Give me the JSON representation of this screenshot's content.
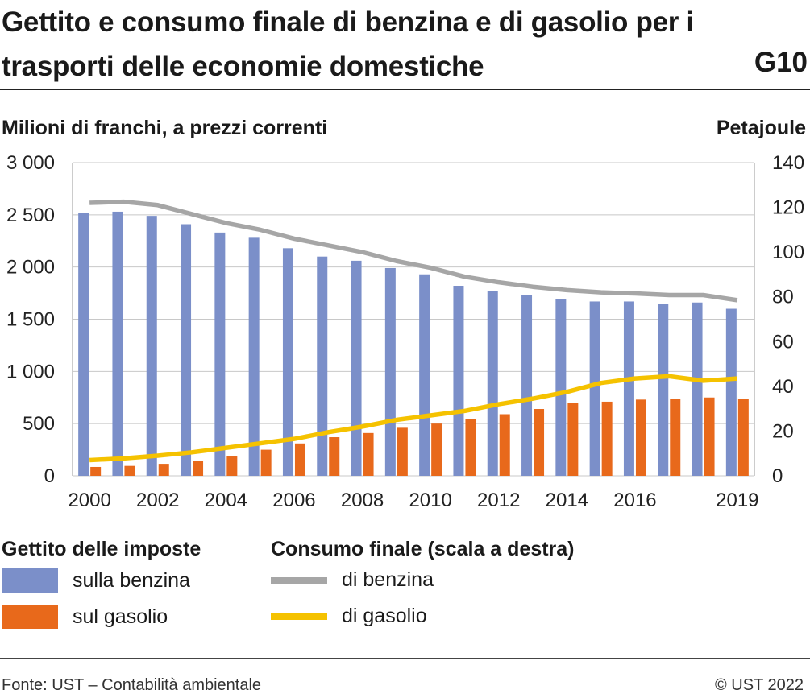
{
  "header": {
    "title": "Gettito e consumo finale di benzina e di gasolio per i trasporti delle economie domestiche",
    "code": "G10"
  },
  "chart_data": {
    "type": "bar",
    "ylabel": "Milioni di franchi, a prezzi correnti",
    "y2label": "Petajoule",
    "ylim": [
      0,
      3000
    ],
    "y2lim": [
      0,
      140
    ],
    "yticks": [
      0,
      500,
      1000,
      1500,
      2000,
      2500,
      3000
    ],
    "yticks_labels": [
      "0",
      "500",
      "1 000",
      "1 500",
      "2 000",
      "2 500",
      "3 000"
    ],
    "y2ticks": [
      0,
      20,
      40,
      60,
      80,
      100,
      120,
      140
    ],
    "x": [
      2000,
      2001,
      2002,
      2003,
      2004,
      2005,
      2006,
      2007,
      2008,
      2009,
      2010,
      2011,
      2012,
      2013,
      2014,
      2015,
      2016,
      2017,
      2018,
      2019
    ],
    "xtick_labels": [
      "2000",
      "",
      "2002",
      "",
      "2004",
      "",
      "2006",
      "",
      "2008",
      "",
      "2010",
      "",
      "2012",
      "",
      "2014",
      "",
      "2016",
      "",
      "",
      "2019"
    ],
    "grid": true,
    "legend_position": "bottom",
    "legend_groups": [
      "Gettito delle imposte",
      "Consumo finale (scala a destra)"
    ],
    "series": [
      {
        "name": "sulla benzina",
        "kind": "bar",
        "axis": "left",
        "color": "#7b8fc9",
        "values": [
          2520,
          2530,
          2490,
          2410,
          2330,
          2280,
          2180,
          2100,
          2060,
          1990,
          1930,
          1820,
          1770,
          1730,
          1690,
          1670,
          1670,
          1650,
          1660,
          1600
        ]
      },
      {
        "name": "sul gasolio",
        "kind": "bar",
        "axis": "left",
        "color": "#e8691b",
        "values": [
          85,
          95,
          115,
          145,
          185,
          250,
          310,
          370,
          410,
          460,
          500,
          540,
          590,
          640,
          700,
          710,
          730,
          740,
          750,
          740
        ]
      },
      {
        "name": "di benzina",
        "kind": "line",
        "axis": "right",
        "color": "#a6a6a6",
        "values": [
          122,
          122.5,
          121,
          117,
          113,
          110,
          106,
          103,
          100,
          96,
          93,
          89,
          86.5,
          84.5,
          83,
          82,
          81.5,
          80.8,
          80.8,
          78.5
        ]
      },
      {
        "name": "di gasolio",
        "kind": "line",
        "axis": "right",
        "color": "#f5c200",
        "values": [
          7,
          7.8,
          9,
          10.5,
          12.5,
          14.5,
          16.5,
          19.5,
          22,
          25,
          27,
          29,
          32,
          34.5,
          37.5,
          41.5,
          43.5,
          44.5,
          42.5,
          43.5
        ]
      }
    ]
  },
  "legend": {
    "bars_title": "Gettito delle imposte",
    "lines_title": "Consumo finale (scala a destra)",
    "benzina_bar": "sulla benzina",
    "gasolio_bar": "sul gasolio",
    "benzina_line": "di benzina",
    "gasolio_line": "di gasolio"
  },
  "footer": {
    "source": "Fonte: UST – Contabilità ambientale",
    "copyright": "© UST 2022"
  }
}
